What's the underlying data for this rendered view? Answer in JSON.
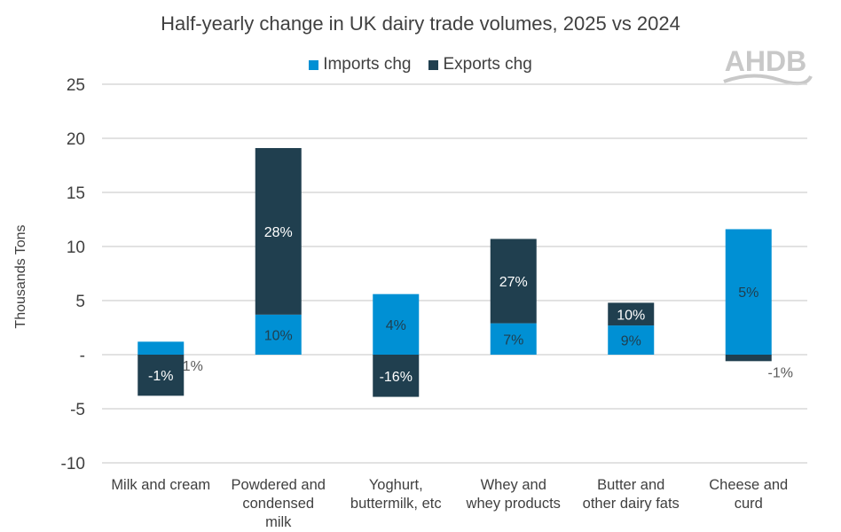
{
  "chart_data": {
    "type": "bar",
    "stacked": true,
    "title": "Half-yearly change in UK dairy trade volumes, 2025 vs 2024",
    "ylabel": "Thousands Tons",
    "xlabel": "",
    "ylim": [
      -10,
      25
    ],
    "yticks": [
      25,
      20,
      15,
      10,
      5,
      0,
      -5,
      -10
    ],
    "ytick_labels": [
      "25",
      "20",
      "15",
      "10",
      "5",
      "-",
      "-5",
      "-10"
    ],
    "grid": true,
    "legend_position": "top",
    "categories": [
      [
        "Milk and cream"
      ],
      [
        "Powdered and",
        "condensed",
        "milk"
      ],
      [
        "Yoghurt,",
        "buttermilk, etc"
      ],
      [
        "Whey and",
        "whey products"
      ],
      [
        "Butter and",
        "other dairy fats"
      ],
      [
        "Cheese and",
        "curd"
      ]
    ],
    "series": [
      {
        "name": "Imports chg",
        "color": "#0090D4",
        "values": [
          1.2,
          3.7,
          5.6,
          2.9,
          2.7,
          11.6
        ],
        "data_labels": [
          "1%",
          "10%",
          "4%",
          "7%",
          "9%",
          "5%"
        ]
      },
      {
        "name": "Exports chg",
        "color": "#203F4F",
        "values": [
          -3.8,
          15.4,
          -3.9,
          7.8,
          2.1,
          -0.6
        ],
        "data_labels": [
          "-1%",
          "28%",
          "-16%",
          "27%",
          "10%",
          "-1%"
        ]
      }
    ]
  },
  "logo": {
    "text": "AHDB"
  }
}
